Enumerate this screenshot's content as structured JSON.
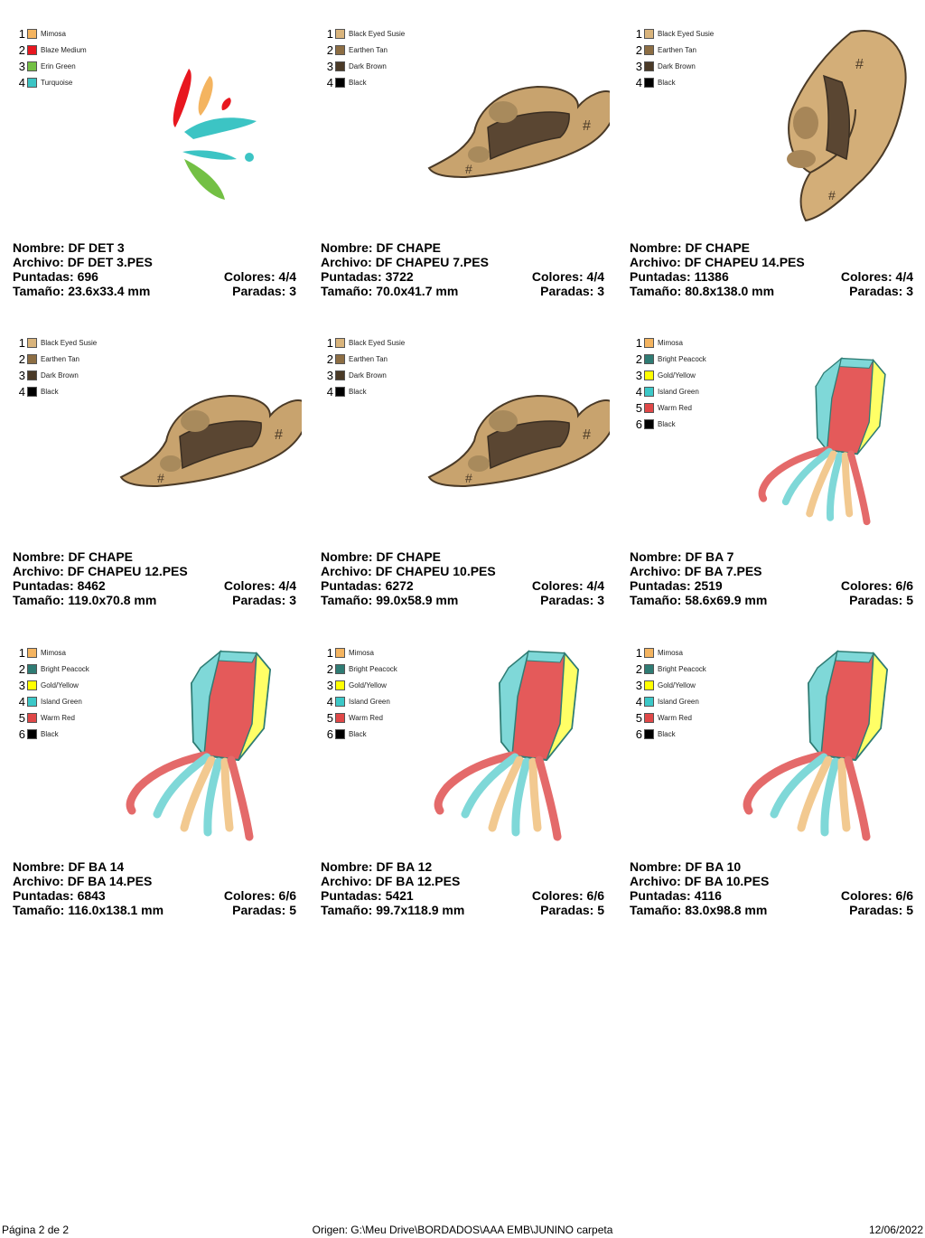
{
  "labels": {
    "name": "Nombre:",
    "file": "Archivo:",
    "stitches": "Puntadas:",
    "size": "Tamaño:",
    "colors": "Colores:",
    "stops": "Paradas:"
  },
  "designs": [
    {
      "name": "DF DET 3",
      "file": "DF DET 3.PES",
      "stitches": "696",
      "size": "23.6x33.4 mm",
      "colors": "4/4",
      "stops": "3",
      "art": "confetti",
      "threads": [
        {
          "num": "1",
          "name": "Mimosa",
          "hex": "#f4b460"
        },
        {
          "num": "2",
          "name": "Blaze Medium",
          "hex": "#e8171f"
        },
        {
          "num": "3",
          "name": "Erin Green",
          "hex": "#73c044"
        },
        {
          "num": "4",
          "name": "Turquoise",
          "hex": "#3cc4c4"
        }
      ]
    },
    {
      "name": "DF CHAPE",
      "file": "DF CHAPEU 7.PES",
      "stitches": "3722",
      "size": "70.0x41.7 mm",
      "colors": "4/4",
      "stops": "3",
      "art": "hat",
      "threads": [
        {
          "num": "1",
          "name": "Black Eyed Susie",
          "hex": "#d9b47c"
        },
        {
          "num": "2",
          "name": "Earthen Tan",
          "hex": "#8d6e44"
        },
        {
          "num": "3",
          "name": "Dark Brown",
          "hex": "#4a3a27"
        },
        {
          "num": "4",
          "name": "Black",
          "hex": "#000000"
        }
      ]
    },
    {
      "name": "DF CHAPE",
      "file": "DF CHAPEU 14.PES",
      "stitches": "11386",
      "size": "80.8x138.0 mm",
      "colors": "4/4",
      "stops": "3",
      "art": "hat-tall",
      "threads": [
        {
          "num": "1",
          "name": "Black Eyed Susie",
          "hex": "#d9b47c"
        },
        {
          "num": "2",
          "name": "Earthen Tan",
          "hex": "#8d6e44"
        },
        {
          "num": "3",
          "name": "Dark Brown",
          "hex": "#4a3a27"
        },
        {
          "num": "4",
          "name": "Black",
          "hex": "#000000"
        }
      ]
    },
    {
      "name": "DF CHAPE",
      "file": "DF CHAPEU 12.PES",
      "stitches": "8462",
      "size": "119.0x70.8 mm",
      "colors": "4/4",
      "stops": "3",
      "art": "hat",
      "threads": [
        {
          "num": "1",
          "name": "Black Eyed Susie",
          "hex": "#d9b47c"
        },
        {
          "num": "2",
          "name": "Earthen Tan",
          "hex": "#8d6e44"
        },
        {
          "num": "3",
          "name": "Dark Brown",
          "hex": "#4a3a27"
        },
        {
          "num": "4",
          "name": "Black",
          "hex": "#000000"
        }
      ]
    },
    {
      "name": "DF CHAPE",
      "file": "DF CHAPEU 10.PES",
      "stitches": "6272",
      "size": "99.0x58.9 mm",
      "colors": "4/4",
      "stops": "3",
      "art": "hat",
      "threads": [
        {
          "num": "1",
          "name": "Black Eyed Susie",
          "hex": "#d9b47c"
        },
        {
          "num": "2",
          "name": "Earthen Tan",
          "hex": "#8d6e44"
        },
        {
          "num": "3",
          "name": "Dark Brown",
          "hex": "#4a3a27"
        },
        {
          "num": "4",
          "name": "Black",
          "hex": "#000000"
        }
      ]
    },
    {
      "name": "DF BA 7",
      "file": "DF BA 7.PES",
      "stitches": "2519",
      "size": "58.6x69.9 mm",
      "colors": "6/6",
      "stops": "5",
      "art": "balloon-small",
      "threads": [
        {
          "num": "1",
          "name": "Mimosa",
          "hex": "#f4b460"
        },
        {
          "num": "2",
          "name": "Bright Peacock",
          "hex": "#2f7c74"
        },
        {
          "num": "3",
          "name": "Gold/Yellow",
          "hex": "#ffff00"
        },
        {
          "num": "4",
          "name": "Island Green",
          "hex": "#3cc8c8"
        },
        {
          "num": "5",
          "name": "Warm Red",
          "hex": "#e04848"
        },
        {
          "num": "6",
          "name": "Black",
          "hex": "#000000"
        }
      ]
    },
    {
      "name": "DF BA 14",
      "file": "DF BA 14.PES",
      "stitches": "6843",
      "size": "116.0x138.1 mm",
      "colors": "6/6",
      "stops": "5",
      "art": "balloon",
      "threads": [
        {
          "num": "1",
          "name": "Mimosa",
          "hex": "#f4b460"
        },
        {
          "num": "2",
          "name": "Bright Peacock",
          "hex": "#2f7c74"
        },
        {
          "num": "3",
          "name": "Gold/Yellow",
          "hex": "#ffff00"
        },
        {
          "num": "4",
          "name": "Island Green",
          "hex": "#3cc8c8"
        },
        {
          "num": "5",
          "name": "Warm Red",
          "hex": "#e04848"
        },
        {
          "num": "6",
          "name": "Black",
          "hex": "#000000"
        }
      ]
    },
    {
      "name": "DF BA 12",
      "file": "DF BA 12.PES",
      "stitches": "5421",
      "size": "99.7x118.9 mm",
      "colors": "6/6",
      "stops": "5",
      "art": "balloon",
      "threads": [
        {
          "num": "1",
          "name": "Mimosa",
          "hex": "#f4b460"
        },
        {
          "num": "2",
          "name": "Bright Peacock",
          "hex": "#2f7c74"
        },
        {
          "num": "3",
          "name": "Gold/Yellow",
          "hex": "#ffff00"
        },
        {
          "num": "4",
          "name": "Island Green",
          "hex": "#3cc8c8"
        },
        {
          "num": "5",
          "name": "Warm Red",
          "hex": "#e04848"
        },
        {
          "num": "6",
          "name": "Black",
          "hex": "#000000"
        }
      ]
    },
    {
      "name": "DF BA 10",
      "file": "DF BA 10.PES",
      "stitches": "4116",
      "size": "83.0x98.8 mm",
      "colors": "6/6",
      "stops": "5",
      "art": "balloon",
      "threads": [
        {
          "num": "1",
          "name": "Mimosa",
          "hex": "#f4b460"
        },
        {
          "num": "2",
          "name": "Bright Peacock",
          "hex": "#2f7c74"
        },
        {
          "num": "3",
          "name": "Gold/Yellow",
          "hex": "#ffff00"
        },
        {
          "num": "4",
          "name": "Island Green",
          "hex": "#3cc8c8"
        },
        {
          "num": "5",
          "name": "Warm Red",
          "hex": "#e04848"
        },
        {
          "num": "6",
          "name": "Black",
          "hex": "#000000"
        }
      ]
    }
  ],
  "footer": {
    "page": "Página 2 de 2",
    "origin": "Origen: G:\\Meu Drive\\BORDADOS\\AAA EMB\\JUNINO carpeta",
    "date": "12/06/2022"
  }
}
